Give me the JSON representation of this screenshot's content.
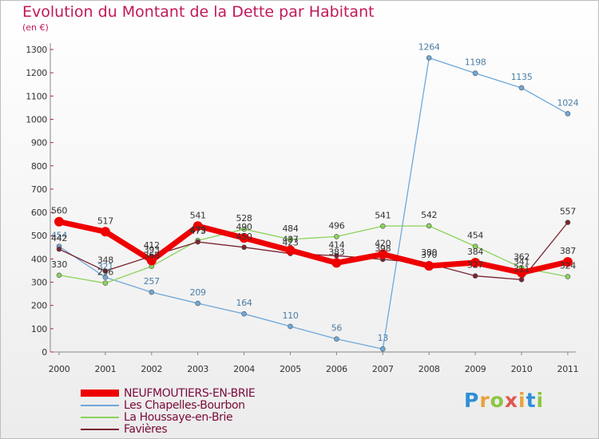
{
  "title": "Evolution du Montant de la Dette par Habitant",
  "subtitle": "(en €)",
  "logo": {
    "text": "Proxiti",
    "colors": [
      "#2f8fd6",
      "#e8a23b",
      "#8cc63f",
      "#e0584f",
      "#e8a23b",
      "#2f8fd6",
      "#8cc63f"
    ]
  },
  "chart_data": {
    "type": "line",
    "title": "Evolution du Montant de la Dette par Habitant",
    "ylabel": "(en €)",
    "xlabel": "",
    "ylim": [
      0,
      1300
    ],
    "yticks": [
      0,
      100,
      200,
      300,
      400,
      500,
      600,
      700,
      800,
      900,
      1000,
      1100,
      1200,
      1300
    ],
    "grid": false,
    "legend_position": "bottom-left",
    "categories": [
      "2000",
      "2001",
      "2002",
      "2003",
      "2004",
      "2005",
      "2006",
      "2007",
      "2008",
      "2009",
      "2010",
      "2011"
    ],
    "series": [
      {
        "name": "NEUFMOUTIERS-EN-BRIE",
        "color": "#ee0000",
        "label_color": "#333333",
        "values": [
          560,
          517,
          393,
          541,
          490,
          437,
          383,
          420,
          370,
          384,
          341,
          387
        ]
      },
      {
        "name": "Les Chapelles-Bourbon",
        "color": "#6fa8d8",
        "label_color": "#4a7ea6",
        "values": [
          454,
          321,
          257,
          209,
          164,
          110,
          56,
          13,
          1264,
          1198,
          1135,
          1024
        ]
      },
      {
        "name": "La Houssaye-en-Brie",
        "color": "#8bd35a",
        "label_color": "#333333",
        "values": [
          330,
          296,
          368,
          479,
          528,
          484,
          496,
          541,
          542,
          454,
          362,
          324
        ]
      },
      {
        "name": "Favières",
        "color": "#7a2430",
        "label_color": "#333333",
        "values": [
          442,
          348,
          412,
          473,
          450,
          423,
          414,
          398,
          380,
          327,
          311,
          557
        ]
      }
    ]
  }
}
